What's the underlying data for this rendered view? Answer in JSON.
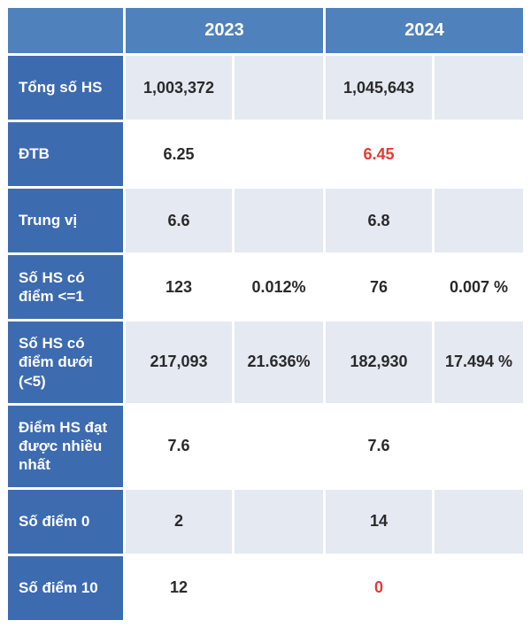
{
  "colors": {
    "header_blue": "#4f81bd",
    "label_blue": "#3d6bb0",
    "row_alt": "#e4e9f2",
    "row_base": "#ffffff",
    "text_dark": "#2a2a2a",
    "text_white": "#ffffff",
    "text_red": "#e53935"
  },
  "table": {
    "type": "table",
    "columns": {
      "year_2023": "2023",
      "year_2024": "2024"
    },
    "rows": [
      {
        "id": "total",
        "label": "Tổng số HS",
        "v2023": "1,003,372",
        "pct2023": "",
        "v2024": "1,045,643",
        "pct2024": "",
        "alt": true,
        "v2023_red": false,
        "v2024_red": false
      },
      {
        "id": "dtb",
        "label": "ĐTB",
        "v2023": "6.25",
        "pct2023": "",
        "v2024": "6.45",
        "pct2024": "",
        "alt": false,
        "v2023_red": false,
        "v2024_red": true
      },
      {
        "id": "median",
        "label": "Trung vị",
        "v2023": "6.6",
        "pct2023": "",
        "v2024": "6.8",
        "pct2024": "",
        "alt": true,
        "v2023_red": false,
        "v2024_red": false
      },
      {
        "id": "le1",
        "label": "Số HS có điểm <=1",
        "v2023": "123",
        "pct2023": "0.012%",
        "v2024": "76",
        "pct2024": "0.007 %",
        "alt": false,
        "v2023_red": false,
        "v2024_red": false
      },
      {
        "id": "lt5",
        "label": "Số HS có điểm dưới (<5)",
        "v2023": "217,093",
        "pct2023": "21.636%",
        "v2024": "182,930",
        "pct2024": "17.494 %",
        "alt": true,
        "v2023_red": false,
        "v2024_red": false
      },
      {
        "id": "mode",
        "label": "Điểm HS đạt được nhiều nhất",
        "v2023": "7.6",
        "pct2023": "",
        "v2024": "7.6",
        "pct2024": "",
        "alt": false,
        "v2023_red": false,
        "v2024_red": false
      },
      {
        "id": "zero",
        "label": "Số điểm 0",
        "v2023": "2",
        "pct2023": "",
        "v2024": "14",
        "pct2024": "",
        "alt": true,
        "v2023_red": false,
        "v2024_red": false
      },
      {
        "id": "ten",
        "label": "Số điểm 10",
        "v2023": "12",
        "pct2023": "",
        "v2024": "0",
        "pct2024": "",
        "alt": false,
        "v2023_red": false,
        "v2024_red": true
      }
    ]
  }
}
